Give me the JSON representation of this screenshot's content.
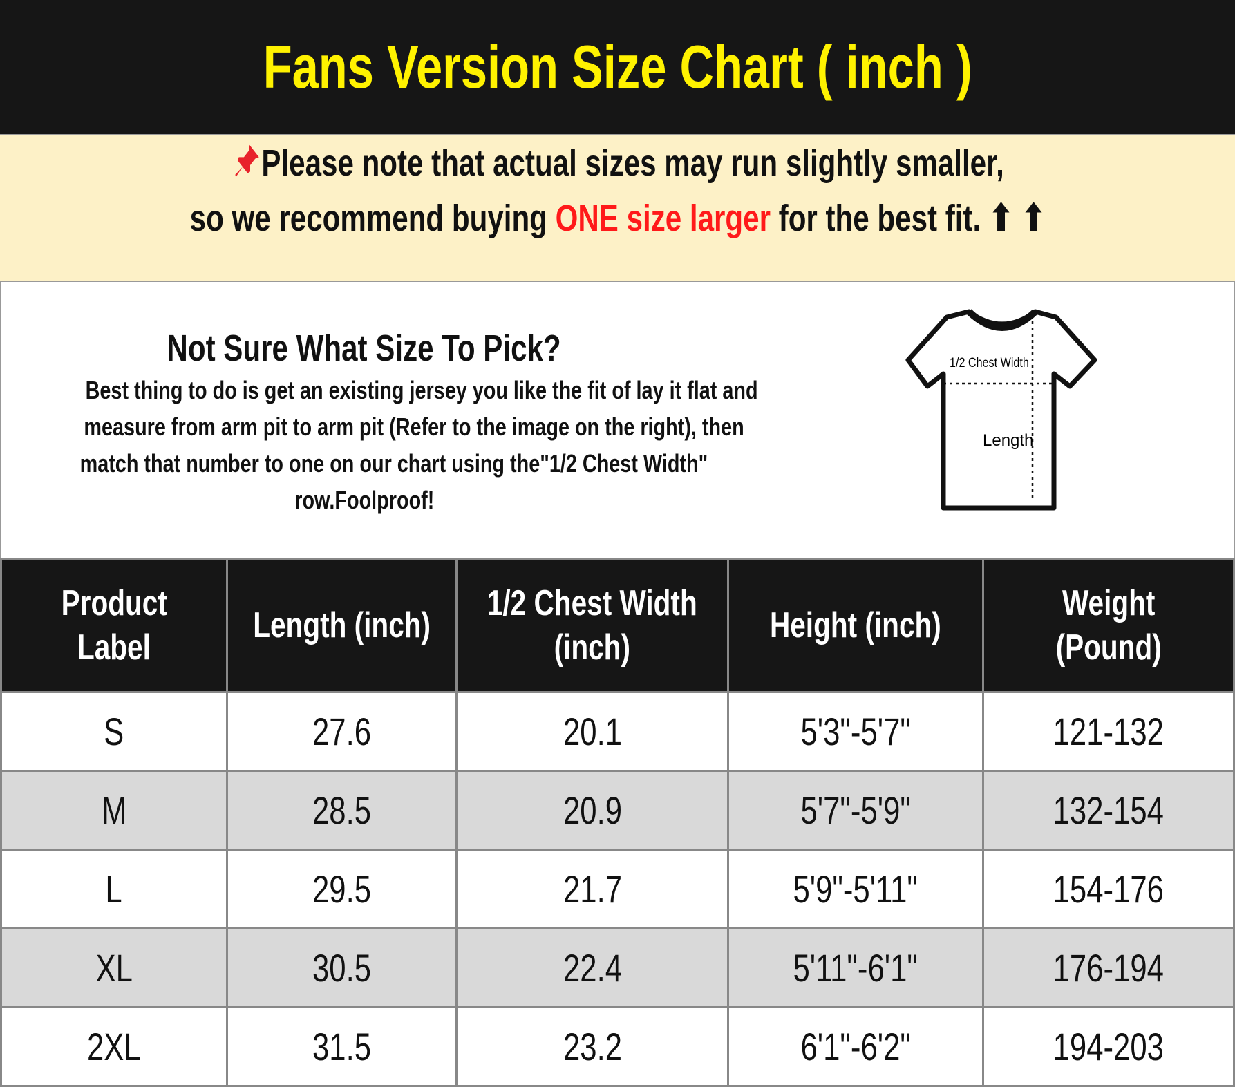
{
  "title": "Fans Version Size Chart ( inch )",
  "note": {
    "line1": "Please note that actual sizes may run slightly smaller,",
    "line2_pre": "so we recommend buying ",
    "line2_highlight": "ONE size larger",
    "line2_post": " for the best fit.",
    "arrows": "⬆ ⬆",
    "pin_icon": "pushpin-icon",
    "highlight_color": "#ff1a1a"
  },
  "info": {
    "question": "Not Sure What Size To Pick?",
    "lines": [
      "Best thing to do is get an existing jersey you like the fit of lay it flat and",
      "measure from arm pit to arm pit (Refer to the image on the right), then",
      "match that number to one on our chart using the\"1/2 Chest Width\"",
      "row.Foolproof!"
    ],
    "diagram": {
      "chest_label": "1/2 Chest Width",
      "length_label": "Length"
    }
  },
  "table": {
    "headers": [
      [
        "Product",
        "Label"
      ],
      [
        "Length (inch)"
      ],
      [
        "1/2 Chest Width",
        "(inch)"
      ],
      [
        "Height (inch)"
      ],
      [
        "Weight",
        "(Pound)"
      ]
    ],
    "rows": [
      [
        "S",
        "27.6",
        "20.1",
        "5'3\"-5'7\"",
        "121-132"
      ],
      [
        "M",
        "28.5",
        "20.9",
        "5'7\"-5'9\"",
        "132-154"
      ],
      [
        "L",
        "29.5",
        "21.7",
        "5'9\"-5'11\"",
        "154-176"
      ],
      [
        "XL",
        "30.5",
        "22.4",
        "5'11\"-6'1\"",
        "176-194"
      ],
      [
        "2XL",
        "31.5",
        "23.2",
        "6'1\"-6'2\"",
        "194-203"
      ]
    ]
  },
  "colors": {
    "title": "#fff200",
    "header_bg": "#161616",
    "note_bg": "#fdf1c7",
    "alt_row": "#d9d9d9"
  }
}
